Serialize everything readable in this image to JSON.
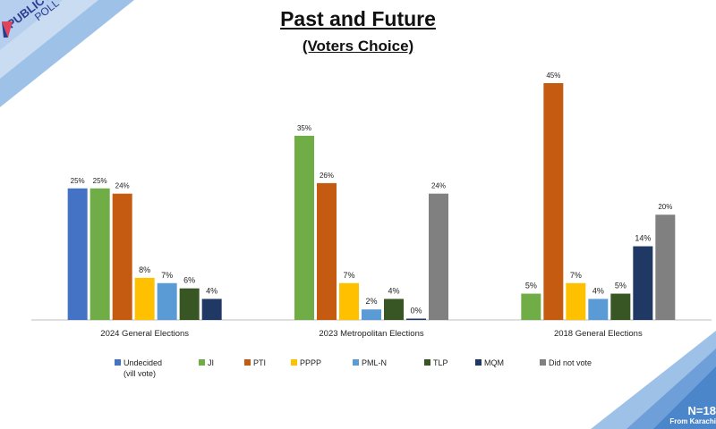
{
  "logo": {
    "line1": "PUBLICVOICE",
    "line2": "POLL"
  },
  "title": "Past and Future",
  "subtitle": "(Voters Choice)",
  "footer": {
    "n_label": "N=18",
    "from_label": "From Karachi"
  },
  "colors": {
    "Undecided": "#4472c4",
    "JI": "#70ad47",
    "PTI": "#c55a11",
    "PPPP": "#ffc000",
    "PML-N": "#5b9bd5",
    "TLP": "#375623",
    "MQM": "#203864",
    "Did not vote": "#808080"
  },
  "chart_data": {
    "type": "bar",
    "title": "Past and Future",
    "subtitle": "(Voters Choice)",
    "legend_position": "bottom",
    "grid": false,
    "legend": [
      "Undecided\n(vill vote)",
      "JI",
      "PTI",
      "PPPP",
      "PML-N",
      "TLP",
      "MQM",
      "Did not vote"
    ],
    "groups": [
      {
        "name": "2024 General Elections",
        "bars": [
          {
            "series": "Undecided",
            "value": 25,
            "label": "25%"
          },
          {
            "series": "JI",
            "value": 25,
            "label": "25%"
          },
          {
            "series": "PTI",
            "value": 24,
            "label": "24%"
          },
          {
            "series": "PPPP",
            "value": 8,
            "label": "8%"
          },
          {
            "series": "PML-N",
            "value": 7,
            "label": "7%"
          },
          {
            "series": "TLP",
            "value": 6,
            "label": "6%"
          },
          {
            "series": "MQM",
            "value": 4,
            "label": "4%"
          }
        ]
      },
      {
        "name": "2023 Metropolitan Elections",
        "bars": [
          {
            "series": "JI",
            "value": 35,
            "label": "35%"
          },
          {
            "series": "PTI",
            "value": 26,
            "label": "26%"
          },
          {
            "series": "PPPP",
            "value": 7,
            "label": "7%"
          },
          {
            "series": "PML-N",
            "value": 2,
            "label": "2%"
          },
          {
            "series": "TLP",
            "value": 4,
            "label": "4%"
          },
          {
            "series": "MQM",
            "value": 0,
            "label": "0%"
          },
          {
            "series": "Did not vote",
            "value": 24,
            "label": "24%"
          }
        ]
      },
      {
        "name": "2018 General Elections",
        "bars": [
          {
            "series": "JI",
            "value": 5,
            "label": "5%"
          },
          {
            "series": "PTI",
            "value": 45,
            "label": "45%"
          },
          {
            "series": "PPPP",
            "value": 7,
            "label": "7%"
          },
          {
            "series": "PML-N",
            "value": 4,
            "label": "4%"
          },
          {
            "series": "TLP",
            "value": 5,
            "label": "5%"
          },
          {
            "series": "MQM",
            "value": 14,
            "label": "14%"
          },
          {
            "series": "Did not vote",
            "value": 20,
            "label": "20%"
          }
        ]
      }
    ],
    "ylim": [
      0,
      45
    ]
  }
}
